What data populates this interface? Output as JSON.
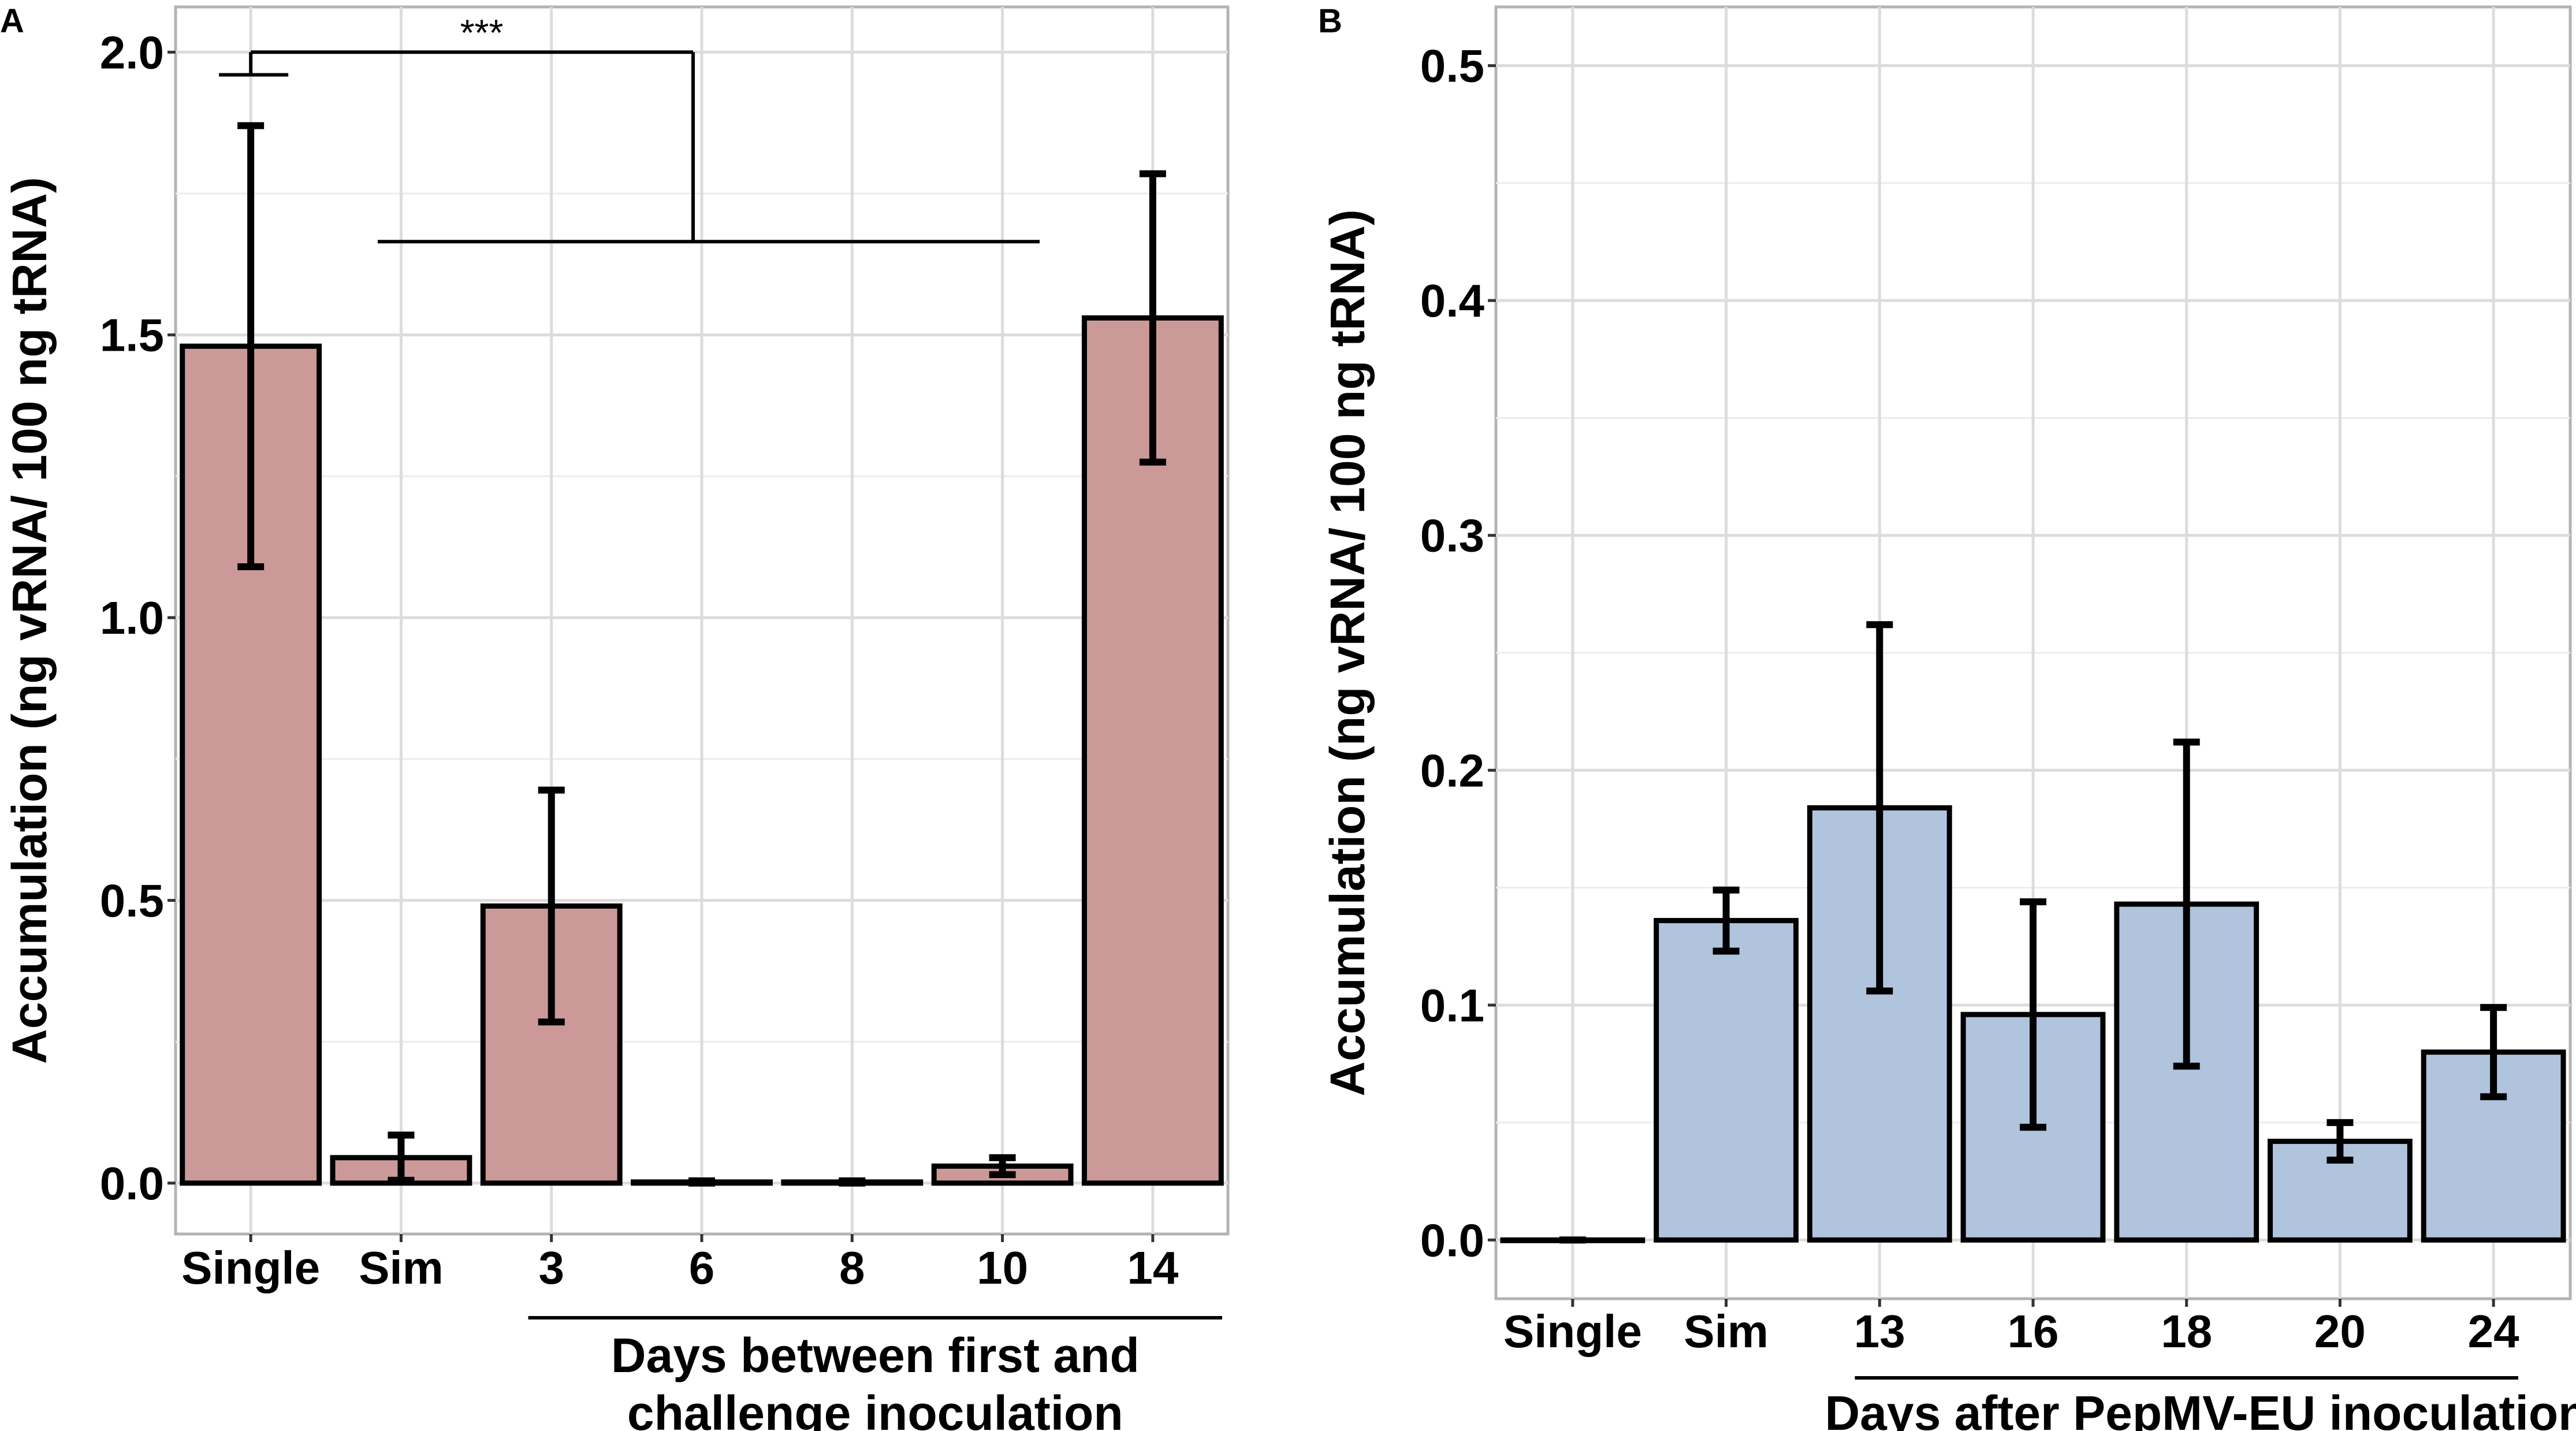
{
  "chart_data": [
    {
      "panel": "A",
      "type": "bar",
      "categories": [
        "Single",
        "Sim",
        "3",
        "6",
        "8",
        "10",
        "14"
      ],
      "values": [
        1.48,
        0.045,
        0.49,
        0.002,
        0.002,
        0.03,
        1.53
      ],
      "errors": [
        0.39,
        0.04,
        0.205,
        0.002,
        0.002,
        0.015,
        0.255
      ],
      "ylabel": "Accumulation (ng vRNA/ 100 ng tRNA)",
      "xlabel_lines": [
        "Days between first and",
        "challenge inoculation"
      ],
      "yticks": [
        "0.0",
        "0.5",
        "1.0",
        "1.5",
        "2.0"
      ],
      "ylim": [
        -0.09,
        2.08
      ],
      "significance": "***",
      "bar_color": "#cc9999"
    },
    {
      "panel": "B",
      "type": "bar",
      "categories": [
        "Single",
        "Sim",
        "13",
        "16",
        "18",
        "20",
        "24"
      ],
      "values": [
        0.0,
        0.136,
        0.184,
        0.096,
        0.143,
        0.042,
        0.08
      ],
      "errors": [
        0.0,
        0.013,
        0.078,
        0.048,
        0.069,
        0.008,
        0.019
      ],
      "ylabel": "Accumulation (ng vRNA/ 100 ng tRNA)",
      "xlabel_lines": [
        "Days after PepMV-EU inoculation"
      ],
      "yticks": [
        "0.0",
        "0.1",
        "0.2",
        "0.3",
        "0.4",
        "0.5"
      ],
      "ylim": [
        -0.025,
        0.525
      ],
      "bar_color": "#b0c4de"
    }
  ]
}
